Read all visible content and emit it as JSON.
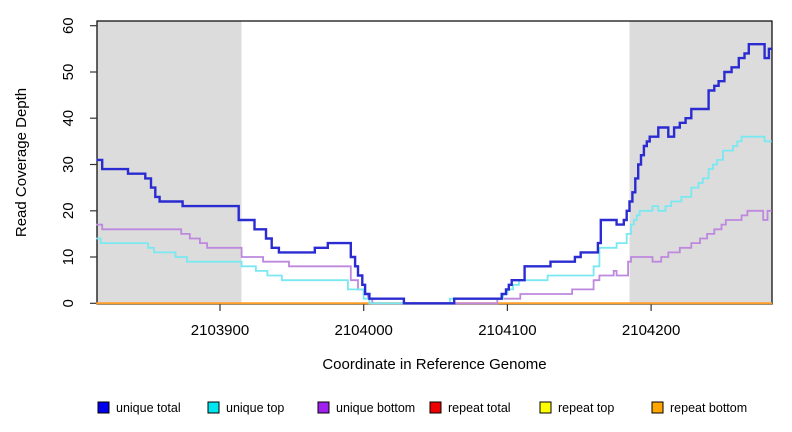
{
  "figure": {
    "background": "#ffffff",
    "shade_color": "#dcdcdc",
    "frame_color": "#000000",
    "tick_color": "#333333"
  },
  "chart_data": {
    "type": "line",
    "subtype": "step",
    "title": "",
    "xlabel": "Coordinate in Reference Genome",
    "ylabel": "Read Coverage Depth",
    "xlim": [
      2103814,
      2104284
    ],
    "ylim": [
      0,
      61
    ],
    "x_ticks": [
      2103900,
      2104000,
      2104100,
      2104200
    ],
    "y_ticks": [
      0,
      10,
      20,
      30,
      40,
      50,
      60
    ],
    "grid": false,
    "legend_position": "bottom",
    "shaded_regions": [
      {
        "from": 2103814,
        "to": 2103915
      },
      {
        "from": 2104185,
        "to": 2104284
      }
    ],
    "series": [
      {
        "name": "unique total",
        "legend_color": "#0000ee",
        "color": "#2b2bd2",
        "points": [
          [
            2103814,
            31
          ],
          [
            2103818,
            29
          ],
          [
            2103836,
            28
          ],
          [
            2103848,
            27
          ],
          [
            2103852,
            25
          ],
          [
            2103855,
            23
          ],
          [
            2103858,
            22
          ],
          [
            2103874,
            21
          ],
          [
            2103913,
            18
          ],
          [
            2103924,
            16
          ],
          [
            2103932,
            14
          ],
          [
            2103936,
            12
          ],
          [
            2103941,
            11
          ],
          [
            2103966,
            12
          ],
          [
            2103975,
            13
          ],
          [
            2103991,
            10
          ],
          [
            2103994,
            8
          ],
          [
            2103996,
            6
          ],
          [
            2103999,
            4
          ],
          [
            2104001,
            2
          ],
          [
            2104004,
            1
          ],
          [
            2104028,
            0
          ],
          [
            2104063,
            1
          ],
          [
            2104096,
            2
          ],
          [
            2104099,
            3
          ],
          [
            2104101,
            4
          ],
          [
            2104103,
            5
          ],
          [
            2104112,
            8
          ],
          [
            2104130,
            9
          ],
          [
            2104147,
            10
          ],
          [
            2104151,
            11
          ],
          [
            2104163,
            13
          ],
          [
            2104165,
            18
          ],
          [
            2104176,
            17
          ],
          [
            2104181,
            18
          ],
          [
            2104183,
            20
          ],
          [
            2104185,
            22
          ],
          [
            2104187,
            24
          ],
          [
            2104189,
            27
          ],
          [
            2104191,
            30
          ],
          [
            2104193,
            32
          ],
          [
            2104195,
            34
          ],
          [
            2104197,
            35
          ],
          [
            2104199,
            36
          ],
          [
            2104205,
            38
          ],
          [
            2104212,
            36
          ],
          [
            2104216,
            38
          ],
          [
            2104220,
            39
          ],
          [
            2104224,
            40
          ],
          [
            2104228,
            42
          ],
          [
            2104240,
            46
          ],
          [
            2104244,
            47
          ],
          [
            2104247,
            48
          ],
          [
            2104251,
            50
          ],
          [
            2104256,
            51
          ],
          [
            2104261,
            53
          ],
          [
            2104265,
            54
          ],
          [
            2104268,
            56
          ],
          [
            2104279,
            53
          ],
          [
            2104282,
            55
          ]
        ]
      },
      {
        "name": "unique top",
        "legend_color": "#00e5ee",
        "color": "#79e8f0",
        "points": [
          [
            2103814,
            14
          ],
          [
            2103817,
            13
          ],
          [
            2103850,
            12
          ],
          [
            2103854,
            11
          ],
          [
            2103869,
            10
          ],
          [
            2103877,
            9
          ],
          [
            2103915,
            8
          ],
          [
            2103925,
            7
          ],
          [
            2103933,
            6
          ],
          [
            2103943,
            5
          ],
          [
            2103989,
            3
          ],
          [
            2104000,
            1
          ],
          [
            2104004,
            0
          ],
          [
            2104060,
            1
          ],
          [
            2104097,
            2
          ],
          [
            2104100,
            3
          ],
          [
            2104104,
            4
          ],
          [
            2104108,
            5
          ],
          [
            2104128,
            6
          ],
          [
            2104160,
            8
          ],
          [
            2104164,
            12
          ],
          [
            2104176,
            13
          ],
          [
            2104183,
            15
          ],
          [
            2104186,
            17
          ],
          [
            2104188,
            18
          ],
          [
            2104190,
            19
          ],
          [
            2104192,
            20
          ],
          [
            2104201,
            21
          ],
          [
            2104205,
            20
          ],
          [
            2104210,
            21
          ],
          [
            2104214,
            22
          ],
          [
            2104221,
            23
          ],
          [
            2104228,
            25
          ],
          [
            2104233,
            26
          ],
          [
            2104236,
            27
          ],
          [
            2104240,
            29
          ],
          [
            2104243,
            30
          ],
          [
            2104246,
            31
          ],
          [
            2104250,
            33
          ],
          [
            2104257,
            34
          ],
          [
            2104260,
            35
          ],
          [
            2104263,
            36
          ],
          [
            2104279,
            35
          ]
        ]
      },
      {
        "name": "unique bottom",
        "legend_color": "#a020f0",
        "color": "#bd88dd",
        "points": [
          [
            2103814,
            17
          ],
          [
            2103818,
            16
          ],
          [
            2103873,
            15
          ],
          [
            2103879,
            14
          ],
          [
            2103886,
            13
          ],
          [
            2103891,
            12
          ],
          [
            2103915,
            10
          ],
          [
            2103930,
            9
          ],
          [
            2103948,
            8
          ],
          [
            2103991,
            5
          ],
          [
            2103996,
            3
          ],
          [
            2104000,
            2
          ],
          [
            2104003,
            1
          ],
          [
            2104006,
            0
          ],
          [
            2104093,
            1
          ],
          [
            2104109,
            2
          ],
          [
            2104145,
            3
          ],
          [
            2104160,
            5
          ],
          [
            2104164,
            6
          ],
          [
            2104174,
            7
          ],
          [
            2104176,
            6
          ],
          [
            2104184,
            9
          ],
          [
            2104186,
            10
          ],
          [
            2104201,
            9
          ],
          [
            2104207,
            10
          ],
          [
            2104212,
            11
          ],
          [
            2104220,
            12
          ],
          [
            2104228,
            13
          ],
          [
            2104234,
            14
          ],
          [
            2104239,
            15
          ],
          [
            2104244,
            16
          ],
          [
            2104249,
            17
          ],
          [
            2104252,
            18
          ],
          [
            2104263,
            19
          ],
          [
            2104267,
            20
          ],
          [
            2104278,
            18
          ],
          [
            2104281,
            20
          ]
        ]
      },
      {
        "name": "repeat total",
        "legend_color": "#ee0000",
        "color": "#dd3333",
        "points": [
          [
            2103814,
            0
          ]
        ]
      },
      {
        "name": "repeat top",
        "legend_color": "#ffff00",
        "color": "#ffee33",
        "points": [
          [
            2103814,
            0
          ]
        ]
      },
      {
        "name": "repeat bottom",
        "legend_color": "#ffa500",
        "color": "#ff9d26",
        "points": [
          [
            2103814,
            0
          ]
        ]
      }
    ]
  }
}
